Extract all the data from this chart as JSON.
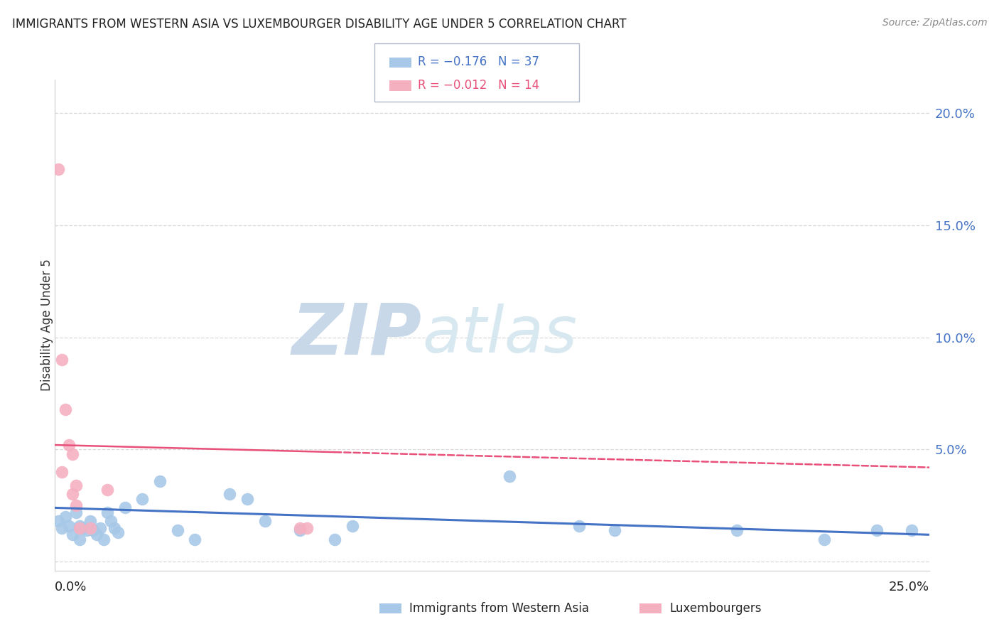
{
  "title": "IMMIGRANTS FROM WESTERN ASIA VS LUXEMBOURGER DISABILITY AGE UNDER 5 CORRELATION CHART",
  "source": "Source: ZipAtlas.com",
  "ylabel": "Disability Age Under 5",
  "legend_blue_r": "R = −0.176",
  "legend_blue_n": "N = 37",
  "legend_pink_r": "R = −0.012",
  "legend_pink_n": "N = 14",
  "blue_color": "#a8c8e8",
  "pink_color": "#f5b0c0",
  "trendline_blue": "#4472c4",
  "trendline_pink": "#e8507a",
  "watermark_ZIP_color": "#c8d8e8",
  "watermark_atlas_color": "#d8e8f0",
  "background_color": "#ffffff",
  "grid_color": "#d0d0d0",
  "title_color": "#222222",
  "source_color": "#888888",
  "axis_label_color": "#4472c4",
  "yticks": [
    0.0,
    0.05,
    0.1,
    0.15,
    0.2
  ],
  "ytick_labels": [
    "",
    "5.0%",
    "10.0%",
    "15.0%",
    "20.0%"
  ],
  "xlim": [
    0.0,
    0.25
  ],
  "ylim": [
    -0.004,
    0.215
  ],
  "blue_x": [
    0.001,
    0.002,
    0.003,
    0.004,
    0.005,
    0.006,
    0.007,
    0.007,
    0.008,
    0.009,
    0.01,
    0.011,
    0.012,
    0.013,
    0.014,
    0.015,
    0.016,
    0.017,
    0.018,
    0.02,
    0.025,
    0.03,
    0.035,
    0.04,
    0.05,
    0.055,
    0.06,
    0.07,
    0.08,
    0.085,
    0.13,
    0.15,
    0.16,
    0.195,
    0.22,
    0.235,
    0.245
  ],
  "blue_y": [
    0.018,
    0.015,
    0.02,
    0.016,
    0.012,
    0.022,
    0.01,
    0.016,
    0.015,
    0.014,
    0.018,
    0.014,
    0.012,
    0.015,
    0.01,
    0.022,
    0.018,
    0.015,
    0.013,
    0.024,
    0.028,
    0.036,
    0.014,
    0.01,
    0.03,
    0.028,
    0.018,
    0.014,
    0.01,
    0.016,
    0.038,
    0.016,
    0.014,
    0.014,
    0.01,
    0.014,
    0.014
  ],
  "pink_x": [
    0.001,
    0.002,
    0.002,
    0.003,
    0.004,
    0.005,
    0.005,
    0.006,
    0.006,
    0.007,
    0.01,
    0.015,
    0.07,
    0.072
  ],
  "pink_y": [
    0.175,
    0.09,
    0.04,
    0.068,
    0.052,
    0.048,
    0.03,
    0.034,
    0.025,
    0.015,
    0.015,
    0.032,
    0.015,
    0.015
  ],
  "blue_trend": [
    0.0,
    0.024,
    0.25,
    0.012
  ],
  "pink_trend": [
    0.0,
    0.052,
    0.25,
    0.042
  ]
}
